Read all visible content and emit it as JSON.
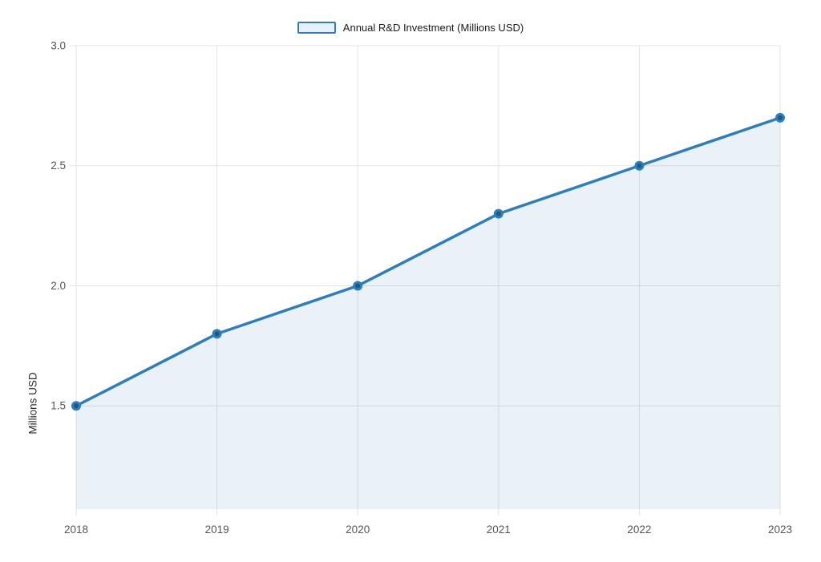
{
  "chart_data": {
    "type": "area",
    "title": "",
    "legend_label": "Annual R&D Investment (Millions USD)",
    "ylabel": "Millions USD",
    "xlabel": "",
    "categories": [
      "2018",
      "2019",
      "2020",
      "2021",
      "2022",
      "2023"
    ],
    "series": [
      {
        "name": "Annual R&D Investment (Millions USD)",
        "values": [
          1.5,
          1.8,
          2.0,
          2.3,
          2.5,
          2.7
        ]
      }
    ],
    "yticks": [
      "1.5",
      "2.0",
      "2.5",
      "3.0"
    ],
    "ytick_values": [
      1.5,
      2.0,
      2.5,
      3.0
    ],
    "ylim": [
      1.07,
      3.0
    ],
    "grid": true,
    "legend_position": "top-center",
    "colors": {
      "line": "#2e7ebc",
      "marker_fill": "#175a8e",
      "area_fill": "rgba(46,126,188,0.10)",
      "gridline": "#e3e3e3",
      "tick_label": "#555555",
      "legend_text": "#1a1a1a",
      "swatch_fill": "#e8f1f9",
      "background": "#ffffff"
    }
  }
}
